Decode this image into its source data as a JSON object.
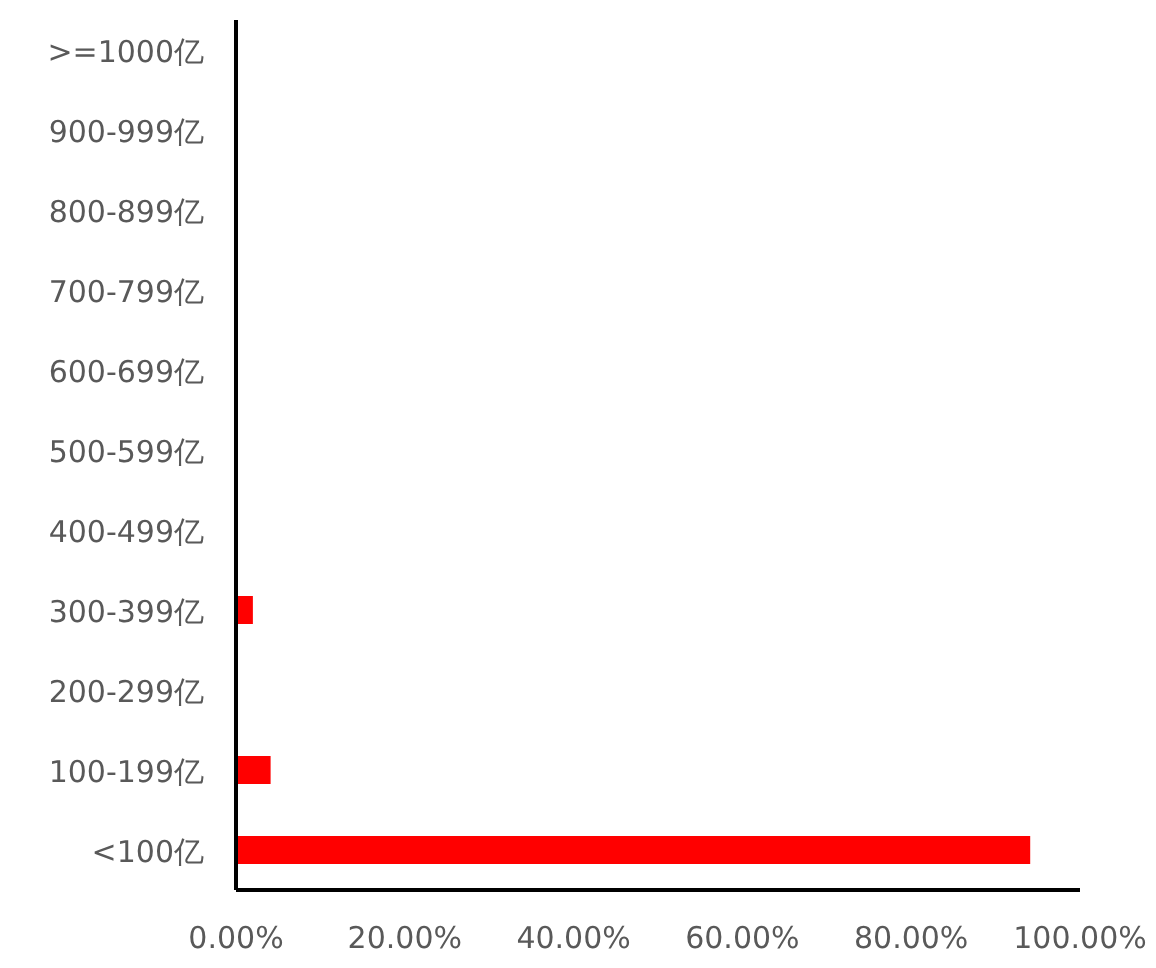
{
  "chart_data": {
    "type": "bar",
    "orientation": "horizontal",
    "color": "#ff0000",
    "categories": [
      ">=1000亿",
      "900-999亿",
      "800-899亿",
      "700-799亿",
      "600-699亿",
      "500-599亿",
      "400-499亿",
      "300-399亿",
      "200-299亿",
      "100-199亿",
      "<100亿"
    ],
    "values": [
      0,
      0,
      0,
      0,
      0,
      0,
      0,
      2.0,
      0,
      4.1,
      94.1
    ],
    "xlim": [
      0,
      100
    ],
    "xticks": [
      {
        "value": 0,
        "label": "0.00%"
      },
      {
        "value": 20,
        "label": "20.00%"
      },
      {
        "value": 40,
        "label": "40.00%"
      },
      {
        "value": 60,
        "label": "60.00%"
      },
      {
        "value": 80,
        "label": "80.00%"
      },
      {
        "value": 100,
        "label": "100.00%"
      }
    ],
    "grid": false
  }
}
